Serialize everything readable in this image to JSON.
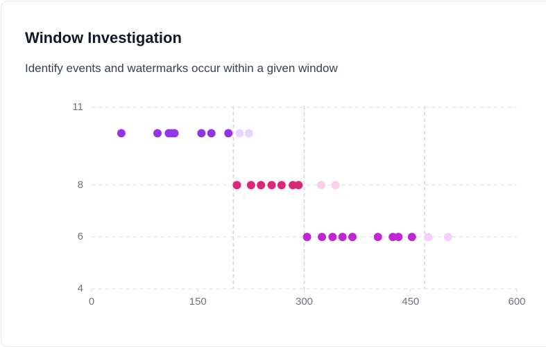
{
  "chart_data": {
    "type": "scatter",
    "title": "Window Investigation",
    "subtitle": "Identify events and watermarks occur within a given window",
    "xlim": [
      0,
      600
    ],
    "xticks": [
      0,
      150,
      300,
      450,
      600
    ],
    "ylim": [
      4,
      11
    ],
    "yticks": [
      4,
      6,
      8,
      11
    ],
    "grid": true,
    "vlines": [
      200,
      300,
      470
    ],
    "series": [
      {
        "color": "#9333ea",
        "x": [
          42,
          93,
          109,
          113,
          117,
          155,
          169,
          193
        ],
        "values": [
          10,
          10,
          10,
          10,
          10,
          10,
          10,
          10
        ]
      },
      {
        "color": "#e9d5ff",
        "x": [
          209,
          222
        ],
        "values": [
          10,
          10
        ]
      },
      {
        "color": "#db2777",
        "x": [
          205,
          225,
          239,
          254,
          268,
          284,
          292
        ],
        "values": [
          8,
          8,
          8,
          8,
          8,
          8,
          8
        ]
      },
      {
        "color": "#fbcfe8",
        "x": [
          324,
          344
        ],
        "values": [
          8,
          8
        ]
      },
      {
        "color": "#c026d3",
        "x": [
          304,
          325,
          340,
          354,
          368,
          404,
          425,
          433,
          452
        ],
        "values": [
          6,
          6,
          6,
          6,
          6,
          6,
          6,
          6,
          6
        ]
      },
      {
        "color": "#f5d0fe",
        "x": [
          475,
          503
        ],
        "values": [
          6,
          6
        ]
      }
    ]
  }
}
